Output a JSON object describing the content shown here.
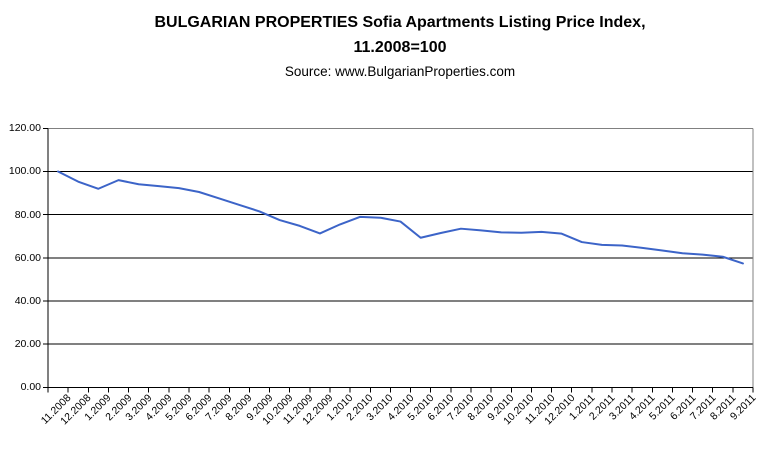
{
  "chart": {
    "title_line1": "BULGARIAN PROPERTIES Sofia Apartments Listing Price Index,",
    "title_line2": "11.2008=100",
    "source": "Source: www.BulgarianProperties.com"
  },
  "chart_data": {
    "type": "line",
    "title": "BULGARIAN PROPERTIES Sofia Apartments Listing Price Index, 11.2008=100",
    "subtitle": "Source: www.BulgarianProperties.com",
    "categories": [
      "11.2008",
      "12.2008",
      "1.2009",
      "2.2009",
      "3.2009",
      "4.2009",
      "5.2009",
      "6.2009",
      "7.2009",
      "8.2009",
      "9.2009",
      "10.2009",
      "11.2009",
      "12.2009",
      "1.2010",
      "2.2010",
      "3.2010",
      "4.2010",
      "5.2010",
      "6.2010",
      "7.2010",
      "8.2010",
      "9.2010",
      "10.2010",
      "11.2010",
      "12.2010",
      "1.2011",
      "2.2011",
      "3.2011",
      "4.2011",
      "5.2011",
      "6.2011",
      "7.2011",
      "8.2011",
      "9.2011"
    ],
    "series": [
      {
        "name": "Sofia Apartments Listing Price Index",
        "color": "#3c64c8",
        "values": [
          100.0,
          95.3,
          92.0,
          96.0,
          94.1,
          93.2,
          92.3,
          90.5,
          87.5,
          84.5,
          81.5,
          77.5,
          74.8,
          71.3,
          75.5,
          79.0,
          78.6,
          76.8,
          69.3,
          71.5,
          73.5,
          72.7,
          71.8,
          71.6,
          72.0,
          71.2,
          67.3,
          66.0,
          65.7,
          64.6,
          63.4,
          62.1,
          61.5,
          60.5,
          57.4
        ]
      }
    ],
    "ylim": [
      0,
      120
    ],
    "ytick_step": 20,
    "ytick_labels": [
      "0.00",
      "20.00",
      "40.00",
      "60.00",
      "80.00",
      "100.00",
      "120.00"
    ],
    "xlabel": "",
    "ylabel": "",
    "grid": "horizontal-major",
    "legend": "none",
    "gridline_color": "#000000",
    "axis_color": "#000000",
    "plot_border_color": "#808080"
  }
}
